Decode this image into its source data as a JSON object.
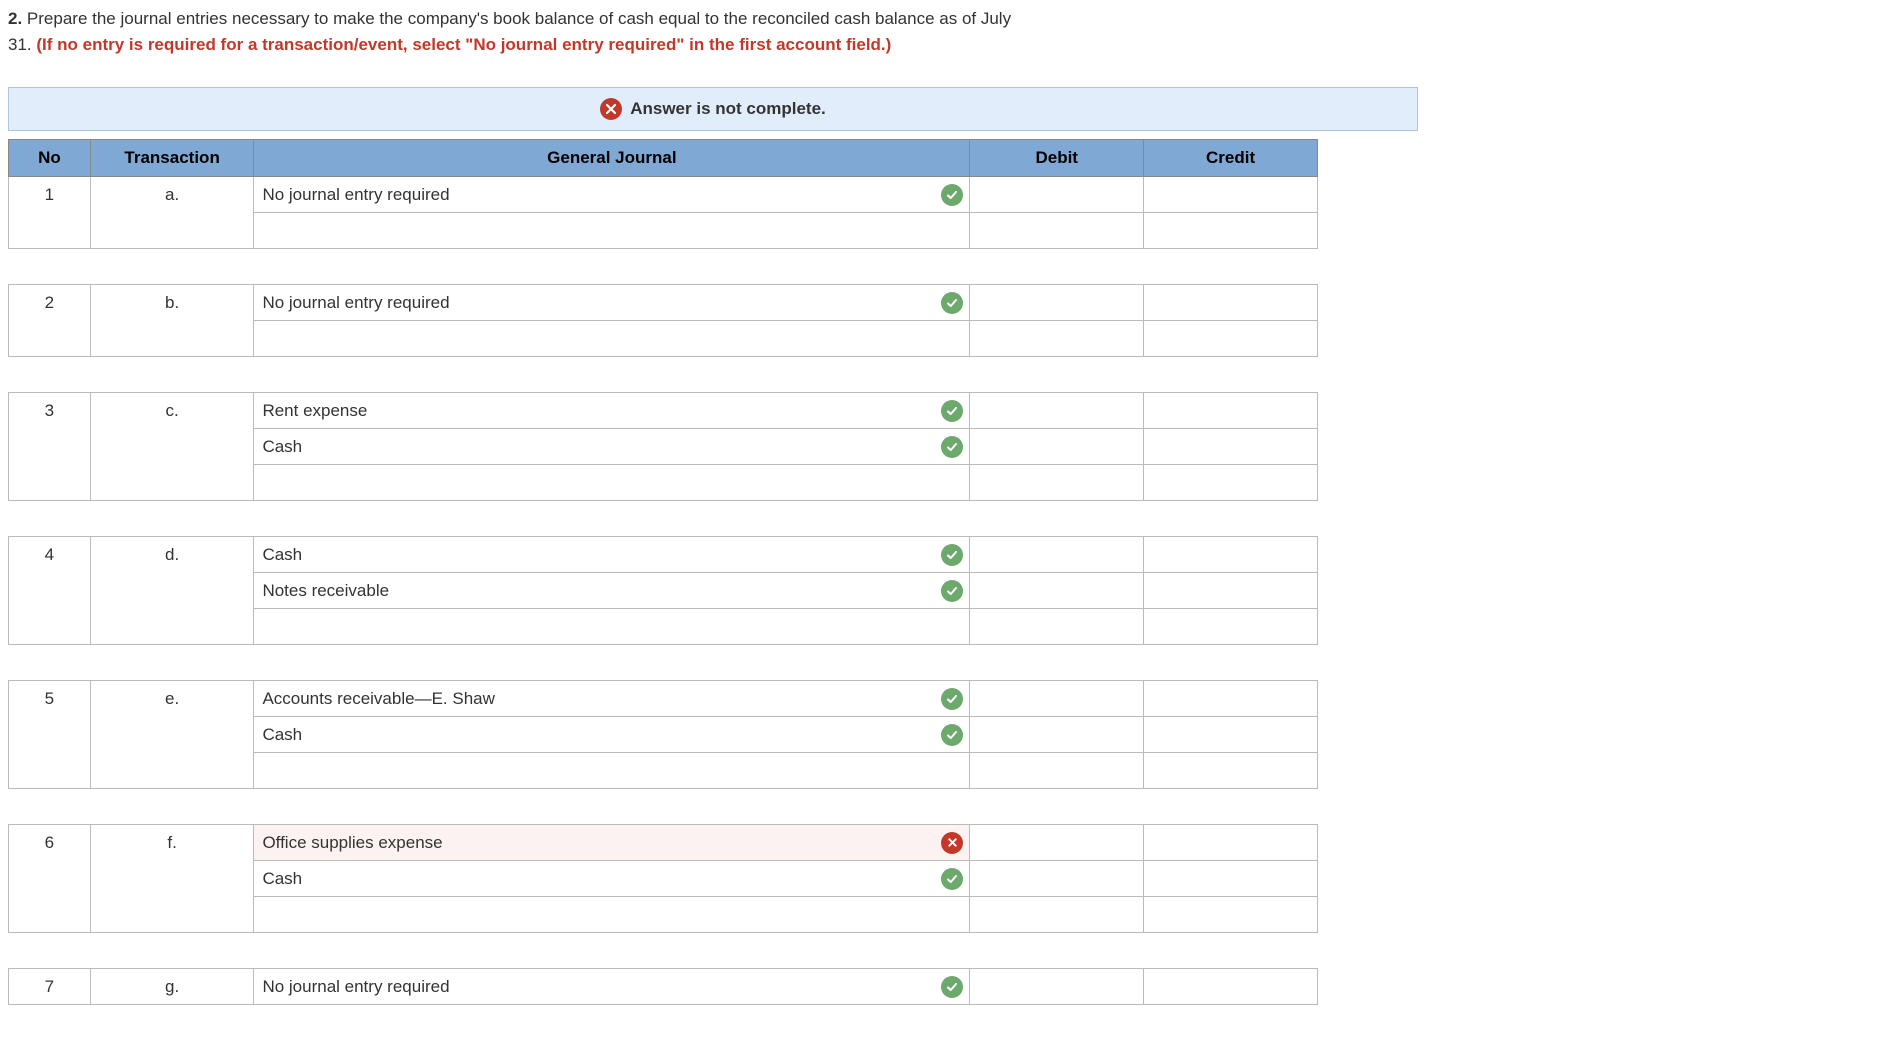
{
  "question": {
    "number": "2.",
    "text_line1": "Prepare the journal entries necessary to make the company's book balance of cash equal to the reconciled cash balance as of July",
    "text_line2_prefix": "31. ",
    "instruction_red": "(If no entry is required for a transaction/event, select \"No journal entry required\" in the first account field.)"
  },
  "banner": {
    "text": "Answer is not complete.",
    "status": "wrong",
    "icon_color": "#c0392b"
  },
  "columns": {
    "no": "No",
    "transaction": "Transaction",
    "general_journal": "General Journal",
    "debit": "Debit",
    "credit": "Credit"
  },
  "groups": [
    {
      "no": "1",
      "trans": "a.",
      "lines": [
        {
          "account": "No journal entry required",
          "status": "correct",
          "wrong_bg": false,
          "debit": "",
          "credit": ""
        },
        {
          "account": "",
          "status": null,
          "wrong_bg": false,
          "debit": "",
          "credit": ""
        }
      ]
    },
    {
      "no": "2",
      "trans": "b.",
      "lines": [
        {
          "account": "No journal entry required",
          "status": "correct",
          "wrong_bg": false,
          "debit": "",
          "credit": ""
        },
        {
          "account": "",
          "status": null,
          "wrong_bg": false,
          "debit": "",
          "credit": ""
        }
      ]
    },
    {
      "no": "3",
      "trans": "c.",
      "lines": [
        {
          "account": "Rent expense",
          "status": "correct",
          "wrong_bg": false,
          "debit": "",
          "credit": ""
        },
        {
          "account": "Cash",
          "status": "correct",
          "wrong_bg": false,
          "debit": "",
          "credit": ""
        },
        {
          "account": "",
          "status": null,
          "wrong_bg": false,
          "debit": "",
          "credit": ""
        }
      ]
    },
    {
      "no": "4",
      "trans": "d.",
      "lines": [
        {
          "account": "Cash",
          "status": "correct",
          "wrong_bg": false,
          "debit": "",
          "credit": ""
        },
        {
          "account": "Notes receivable",
          "status": "correct",
          "wrong_bg": false,
          "debit": "",
          "credit": ""
        },
        {
          "account": "",
          "status": null,
          "wrong_bg": false,
          "debit": "",
          "credit": ""
        }
      ]
    },
    {
      "no": "5",
      "trans": "e.",
      "lines": [
        {
          "account": "Accounts receivable—E. Shaw",
          "status": "correct",
          "wrong_bg": false,
          "debit": "",
          "credit": ""
        },
        {
          "account": "Cash",
          "status": "correct",
          "wrong_bg": false,
          "debit": "",
          "credit": ""
        },
        {
          "account": "",
          "status": null,
          "wrong_bg": false,
          "debit": "",
          "credit": ""
        }
      ]
    },
    {
      "no": "6",
      "trans": "f.",
      "lines": [
        {
          "account": "Office supplies expense",
          "status": "wrong",
          "wrong_bg": true,
          "debit": "",
          "credit": ""
        },
        {
          "account": "Cash",
          "status": "correct",
          "wrong_bg": false,
          "debit": "",
          "credit": ""
        },
        {
          "account": "",
          "status": null,
          "wrong_bg": false,
          "debit": "",
          "credit": ""
        }
      ]
    },
    {
      "no": "7",
      "trans": "g.",
      "lines": [
        {
          "account": "No journal entry required",
          "status": "correct",
          "wrong_bg": false,
          "debit": "",
          "credit": ""
        }
      ]
    }
  ],
  "style": {
    "header_bg": "#7fa8d4",
    "banner_bg": "#e1edfb",
    "correct_color": "#6da86d",
    "wrong_color": "#c0392b",
    "wrong_row_bg": "#fdf2f2"
  }
}
